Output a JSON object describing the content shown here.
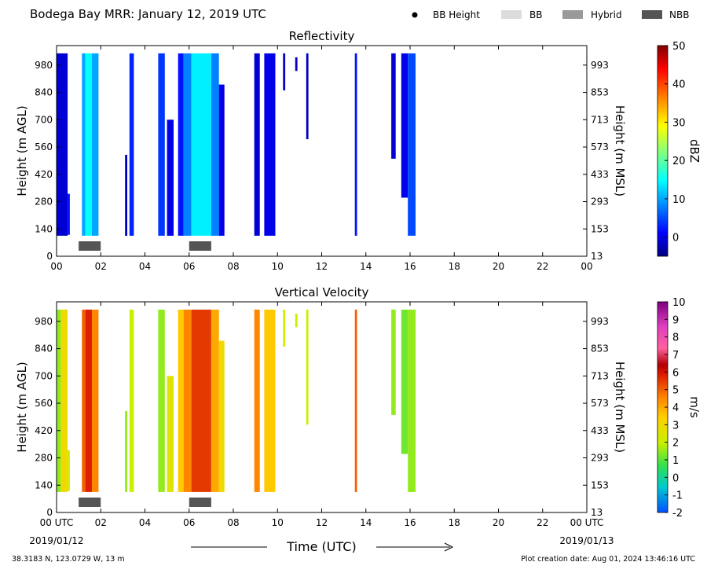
{
  "header": {
    "title": "Bodega Bay MRR:  January 12, 2019 UTC",
    "legend": [
      {
        "label": "BB Height",
        "kind": "dot",
        "color": "#000000"
      },
      {
        "label": "BB",
        "kind": "patch",
        "color": "#dcdcdc"
      },
      {
        "label": "Hybrid",
        "kind": "patch",
        "color": "#9a9a9a"
      },
      {
        "label": "NBB",
        "kind": "patch",
        "color": "#555555"
      }
    ]
  },
  "chart_data": [
    {
      "type": "heatmap",
      "title": "Reflectivity",
      "ylabel": "Height (m AGL)",
      "y2label": "Height (m MSL)",
      "xlim": [
        0,
        24
      ],
      "ylim": [
        0,
        1080
      ],
      "x_ticks": [
        "00",
        "02",
        "04",
        "06",
        "08",
        "10",
        "12",
        "14",
        "16",
        "18",
        "20",
        "22",
        "00"
      ],
      "y_ticks": [
        0,
        140,
        280,
        420,
        560,
        700,
        840,
        980
      ],
      "y2_ticks": [
        13,
        153,
        293,
        433,
        573,
        713,
        853,
        993
      ],
      "colorbar": {
        "label": "dBZ",
        "ticks": [
          0,
          10,
          20,
          30,
          40,
          50
        ],
        "range": [
          -5,
          50
        ]
      },
      "bands": [
        {
          "x0": 0.0,
          "x1": 0.5,
          "ytop": 1040,
          "ybot": 105,
          "value": -1
        },
        {
          "x0": 0.5,
          "x1": 0.6,
          "ytop": 320,
          "ybot": 110,
          "value": 2
        },
        {
          "x0": 1.15,
          "x1": 1.3,
          "ytop": 1040,
          "ybot": 105,
          "value": 10
        },
        {
          "x0": 1.3,
          "x1": 1.6,
          "ytop": 1040,
          "ybot": 105,
          "value": 15
        },
        {
          "x0": 1.6,
          "x1": 1.9,
          "ytop": 1040,
          "ybot": 105,
          "value": 10
        },
        {
          "x0": 3.1,
          "x1": 3.2,
          "ytop": 520,
          "ybot": 105,
          "value": -2
        },
        {
          "x0": 3.3,
          "x1": 3.5,
          "ytop": 1040,
          "ybot": 105,
          "value": 3
        },
        {
          "x0": 4.6,
          "x1": 4.9,
          "ytop": 1040,
          "ybot": 105,
          "value": 4
        },
        {
          "x0": 5.0,
          "x1": 5.3,
          "ytop": 700,
          "ybot": 105,
          "value": 0
        },
        {
          "x0": 5.5,
          "x1": 5.75,
          "ytop": 1040,
          "ybot": 105,
          "value": 2
        },
        {
          "x0": 5.75,
          "x1": 6.1,
          "ytop": 1040,
          "ybot": 105,
          "value": 8
        },
        {
          "x0": 6.1,
          "x1": 7.0,
          "ytop": 1040,
          "ybot": 105,
          "value": 14
        },
        {
          "x0": 7.0,
          "x1": 7.35,
          "ytop": 1040,
          "ybot": 105,
          "value": 8
        },
        {
          "x0": 7.35,
          "x1": 7.6,
          "ytop": 880,
          "ybot": 105,
          "value": 0
        },
        {
          "x0": 8.95,
          "x1": 9.2,
          "ytop": 1040,
          "ybot": 105,
          "value": -1
        },
        {
          "x0": 9.4,
          "x1": 9.9,
          "ytop": 1040,
          "ybot": 105,
          "value": 0
        },
        {
          "x0": 10.25,
          "x1": 10.35,
          "ytop": 1040,
          "ybot": 850,
          "value": -2
        },
        {
          "x0": 10.8,
          "x1": 10.9,
          "ytop": 1020,
          "ybot": 950,
          "value": -2
        },
        {
          "x0": 11.3,
          "x1": 11.4,
          "ytop": 1040,
          "ybot": 600,
          "value": -2
        },
        {
          "x0": 13.5,
          "x1": 13.6,
          "ytop": 1040,
          "ybot": 105,
          "value": 2
        },
        {
          "x0": 15.15,
          "x1": 15.35,
          "ytop": 1040,
          "ybot": 500,
          "value": -1
        },
        {
          "x0": 15.6,
          "x1": 15.9,
          "ytop": 1040,
          "ybot": 300,
          "value": 0
        },
        {
          "x0": 15.9,
          "x1": 16.25,
          "ytop": 1040,
          "ybot": 105,
          "value": 5
        }
      ],
      "nbb_segments": [
        {
          "x0": 1.0,
          "x1": 2.0
        },
        {
          "x0": 6.0,
          "x1": 7.0
        }
      ]
    },
    {
      "type": "heatmap",
      "title": "Vertical Velocity",
      "ylabel": "Height (m AGL)",
      "y2label": "Height (m MSL)",
      "xlabel": "Time (UTC)",
      "xlim": [
        0,
        24
      ],
      "ylim": [
        0,
        1080
      ],
      "x_ticks": [
        "00 UTC",
        "02",
        "04",
        "06",
        "08",
        "10",
        "12",
        "14",
        "16",
        "18",
        "20",
        "22",
        "00 UTC"
      ],
      "x_date_left": "2019/01/12",
      "x_date_right": "2019/01/13",
      "y_ticks": [
        0,
        140,
        280,
        420,
        560,
        700,
        840,
        980
      ],
      "y2_ticks": [
        13,
        153,
        293,
        433,
        573,
        713,
        853,
        993
      ],
      "colorbar": {
        "label": "m/s",
        "ticks": [
          -2,
          -1,
          0,
          1,
          2,
          3,
          4,
          5,
          6,
          7,
          8,
          9,
          10
        ],
        "range": [
          -2,
          10
        ]
      },
      "bands": [
        {
          "x0": 0.0,
          "x1": 0.2,
          "ytop": 1040,
          "ybot": 105,
          "value": 1.5
        },
        {
          "x0": 0.2,
          "x1": 0.5,
          "ytop": 1040,
          "ybot": 105,
          "value": 3
        },
        {
          "x0": 0.5,
          "x1": 0.6,
          "ytop": 320,
          "ybot": 110,
          "value": 2
        },
        {
          "x0": 1.15,
          "x1": 1.3,
          "ytop": 1040,
          "ybot": 105,
          "value": 5
        },
        {
          "x0": 1.3,
          "x1": 1.6,
          "ytop": 1040,
          "ybot": 105,
          "value": 5.8
        },
        {
          "x0": 1.6,
          "x1": 1.9,
          "ytop": 1040,
          "ybot": 105,
          "value": 4.5
        },
        {
          "x0": 3.1,
          "x1": 3.2,
          "ytop": 520,
          "ybot": 105,
          "value": 1.5
        },
        {
          "x0": 3.3,
          "x1": 3.5,
          "ytop": 1040,
          "ybot": 105,
          "value": 2
        },
        {
          "x0": 4.6,
          "x1": 4.9,
          "ytop": 1040,
          "ybot": 105,
          "value": 1.5
        },
        {
          "x0": 5.0,
          "x1": 5.3,
          "ytop": 700,
          "ybot": 105,
          "value": 2.5
        },
        {
          "x0": 5.5,
          "x1": 5.75,
          "ytop": 1040,
          "ybot": 105,
          "value": 3.5
        },
        {
          "x0": 5.75,
          "x1": 6.1,
          "ytop": 1040,
          "ybot": 105,
          "value": 4.5
        },
        {
          "x0": 6.1,
          "x1": 7.0,
          "ytop": 1040,
          "ybot": 105,
          "value": 5.5
        },
        {
          "x0": 7.0,
          "x1": 7.35,
          "ytop": 1040,
          "ybot": 105,
          "value": 4
        },
        {
          "x0": 7.35,
          "x1": 7.6,
          "ytop": 880,
          "ybot": 105,
          "value": 3
        },
        {
          "x0": 8.95,
          "x1": 9.2,
          "ytop": 1040,
          "ybot": 105,
          "value": 4.5
        },
        {
          "x0": 9.4,
          "x1": 9.9,
          "ytop": 1040,
          "ybot": 105,
          "value": 3.5
        },
        {
          "x0": 10.25,
          "x1": 10.35,
          "ytop": 1040,
          "ybot": 850,
          "value": 2
        },
        {
          "x0": 10.8,
          "x1": 10.9,
          "ytop": 1020,
          "ybot": 950,
          "value": 2
        },
        {
          "x0": 11.3,
          "x1": 11.4,
          "ytop": 1040,
          "ybot": 450,
          "value": 2
        },
        {
          "x0": 13.5,
          "x1": 13.6,
          "ytop": 1040,
          "ybot": 105,
          "value": 5
        },
        {
          "x0": 15.15,
          "x1": 15.35,
          "ytop": 1040,
          "ybot": 500,
          "value": 1.5
        },
        {
          "x0": 15.6,
          "x1": 15.9,
          "ytop": 1040,
          "ybot": 300,
          "value": 1.2
        },
        {
          "x0": 15.9,
          "x1": 16.25,
          "ytop": 1040,
          "ybot": 105,
          "value": 1.5
        }
      ],
      "nbb_segments": [
        {
          "x0": 1.0,
          "x1": 2.0
        },
        {
          "x0": 6.0,
          "x1": 7.0
        }
      ]
    }
  ],
  "footer": {
    "location": "38.3183 N, 123.0729 W, 13 m",
    "creation": "Plot creation date: Aug 01, 2024 13:46:16 UTC"
  }
}
